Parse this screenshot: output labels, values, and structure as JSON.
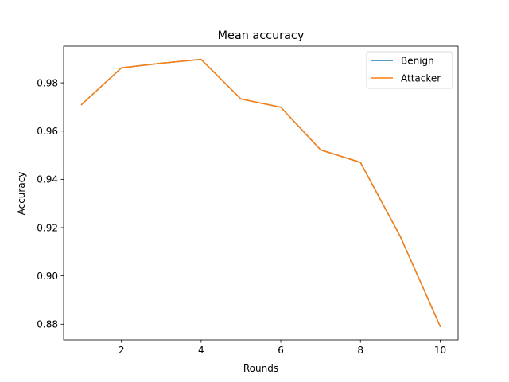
{
  "chart_data": {
    "type": "line",
    "title": "Mean accuracy",
    "xlabel": "Rounds",
    "ylabel": "Accuracy",
    "x": [
      1,
      2,
      3,
      4,
      5,
      6,
      7,
      8,
      9,
      10
    ],
    "xlim": [
      0.55,
      10.45
    ],
    "ylim": [
      0.8735,
      0.9952
    ],
    "xticks": [
      2,
      4,
      6,
      8,
      10
    ],
    "yticks": [
      0.88,
      0.9,
      0.92,
      0.94,
      0.96,
      0.98
    ],
    "grid": false,
    "legend_position": "top-right",
    "series": [
      {
        "name": "Benign",
        "color": "#1f77b4",
        "values": [
          0.971,
          0.9862,
          0.9881,
          0.9897,
          0.9733,
          0.9699,
          0.9522,
          0.947,
          0.9163,
          0.8791
        ]
      },
      {
        "name": "Attacker",
        "color": "#ff7f0e",
        "values": [
          0.971,
          0.9862,
          0.9881,
          0.9897,
          0.9733,
          0.9699,
          0.9522,
          0.947,
          0.9163,
          0.8791
        ]
      }
    ]
  }
}
